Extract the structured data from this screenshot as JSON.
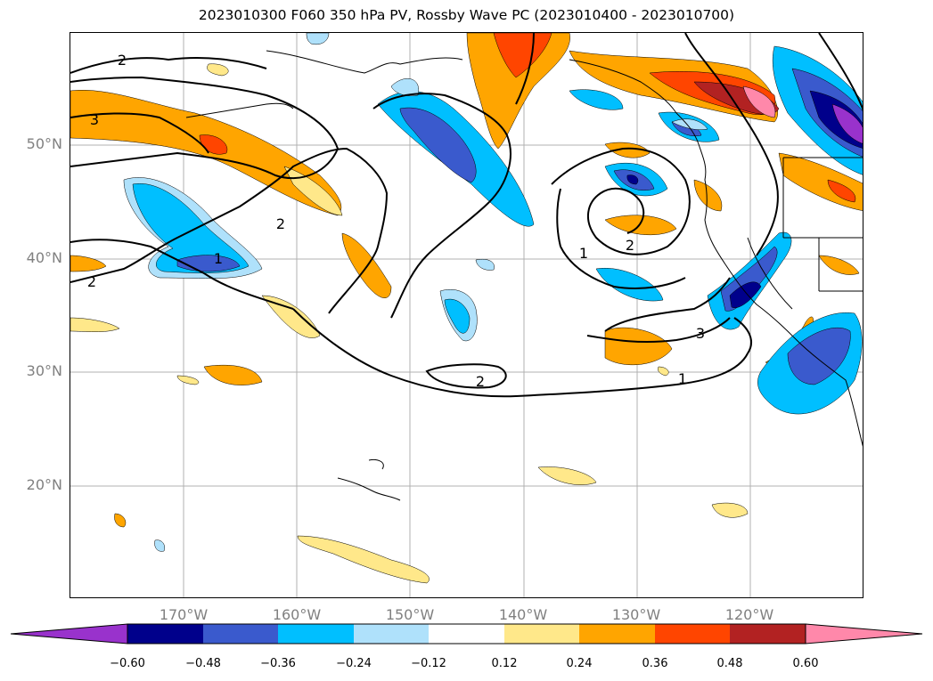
{
  "title": "2023010300 F060 350 hPa PV, Rossby Wave PC (2023010400 - 2023010700)",
  "latitude_labels": [
    "50°N",
    "40°N",
    "30°N",
    "20°N"
  ],
  "longitude_labels": [
    "170°W",
    "160°W",
    "150°W",
    "140°W",
    "130°W",
    "120°W"
  ],
  "colorbar": {
    "tick_labels": [
      "−0.60",
      "−0.48",
      "−0.36",
      "−0.24",
      "−0.12",
      "0.12",
      "0.24",
      "0.36",
      "0.48",
      "0.60"
    ],
    "colors": [
      "#9932cc",
      "#00008b",
      "#3a5acd",
      "#00bfff",
      "#afe1fb",
      "#ffffff",
      "#ffe88a",
      "#ffa500",
      "#ff4500",
      "#b22222",
      "#ff88aa"
    ]
  },
  "contour_labels": [
    "2",
    "3",
    "2",
    "2",
    "1",
    "1",
    "2",
    "3",
    "2",
    "1"
  ]
}
